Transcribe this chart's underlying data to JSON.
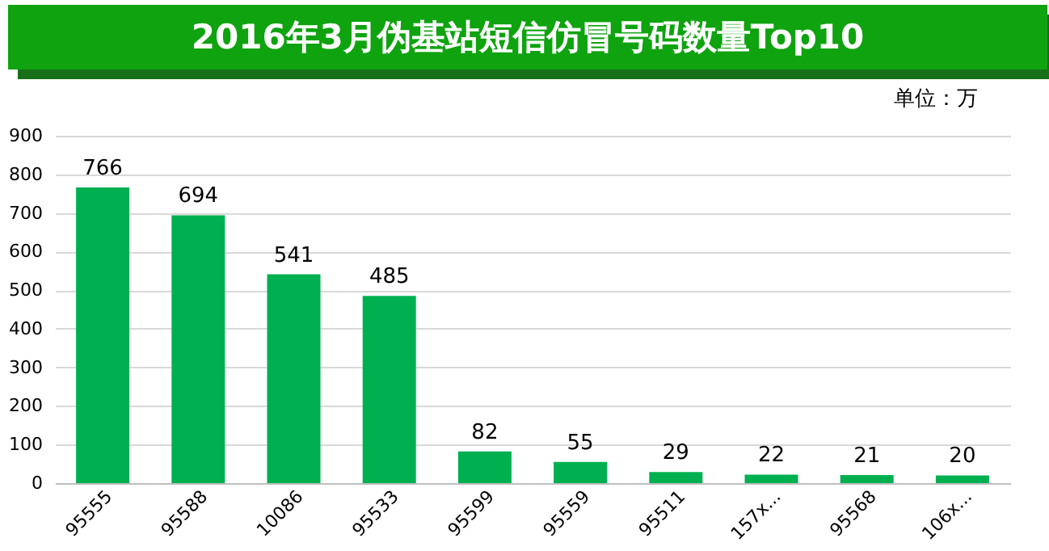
{
  "chart_data": {
    "type": "bar",
    "title": "2016年3月伪基站短信仿冒号码数量Top10",
    "annotations": [
      "单位：万"
    ],
    "categories": [
      "95555",
      "95588",
      "10086",
      "95533",
      "95599",
      "95559",
      "95511",
      "157x...",
      "95568",
      "106x..."
    ],
    "values": [
      766,
      694,
      541,
      485,
      82,
      55,
      29,
      22,
      21,
      20
    ],
    "color": "#00b050",
    "ylim": [
      0,
      900
    ],
    "yticks": [
      0,
      100,
      200,
      300,
      400,
      500,
      600,
      700,
      800,
      900
    ],
    "grid": "y",
    "data_labels": true
  }
}
